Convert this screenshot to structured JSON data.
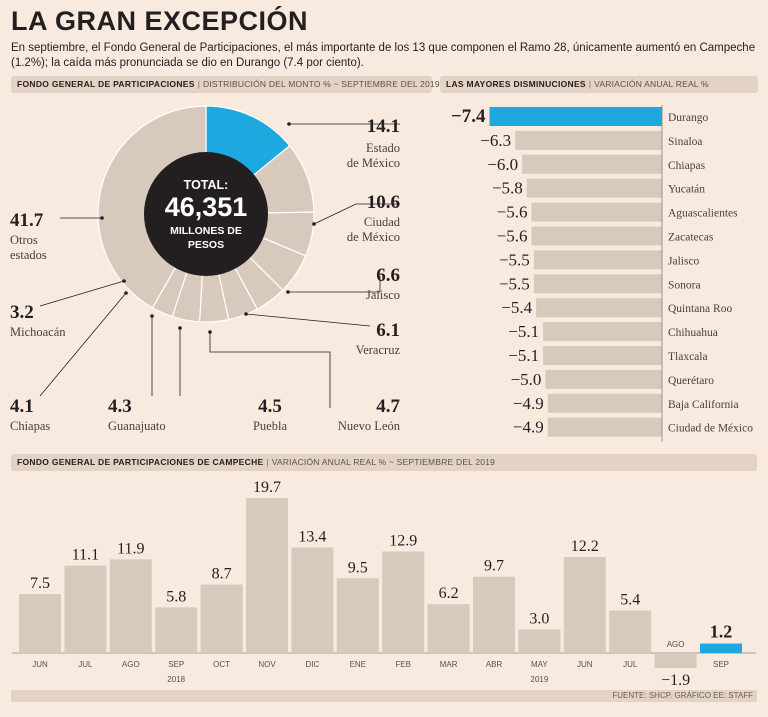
{
  "header": {
    "title": "LA GRAN EXCEPCIÓN",
    "subtitle": "En septiembre, el Fondo General de Participaciones, el más importante de los 13 que componen el Ramo 28, únicamente aumentó en Campeche (1.2%); la caída más pronunciada se dio en Durango (7.4 por ciento)."
  },
  "sections": {
    "pie": {
      "title": "FONDO GENERAL DE PARTICIPACIONES",
      "note": "DISTRIBUCIÓN DEL MONTO % ~ SEPTIEMBRE DEL 2019"
    },
    "decline": {
      "title": "LAS MAYORES DISMINUCIONES",
      "note": "VARIACIÓN ANUAL REAL %"
    },
    "campeche": {
      "title": "FONDO GENERAL DE PARTICIPACIONES DE CAMPECHE",
      "note": "VARIACIÓN ANUAL REAL % ~ SEPTIEMBRE DEL 2019"
    }
  },
  "footer": {
    "source": "FUENTE: SHCP. GRÁFICO EE: STAFF"
  },
  "colors": {
    "gray": "#d7c9bc",
    "blue": "#1ea8e0",
    "dark": "#231f20"
  },
  "chart_data": [
    {
      "type": "pie",
      "title": "FONDO GENERAL DE PARTICIPACIONES",
      "center": {
        "line1": "TOTAL:",
        "line2": "46,351",
        "line3": "MILLONES DE",
        "line4": "PESOS"
      },
      "slices": [
        {
          "label": "Estado de México",
          "label_lines": [
            "Estado",
            "de México"
          ],
          "value": 14.1,
          "value_text": "14.1",
          "highlight": true
        },
        {
          "label": "Ciudad de México",
          "label_lines": [
            "Ciudad",
            "de México"
          ],
          "value": 10.6,
          "value_text": "10.6",
          "highlight": false
        },
        {
          "label": "Jalisco",
          "label_lines": [
            "Jalisco"
          ],
          "value": 6.6,
          "value_text": "6.6",
          "highlight": false
        },
        {
          "label": "Veracruz",
          "label_lines": [
            "Veracruz"
          ],
          "value": 6.1,
          "value_text": "6.1",
          "highlight": false
        },
        {
          "label": "Nuevo León",
          "label_lines": [
            "Nuevo León"
          ],
          "value": 4.7,
          "value_text": "4.7",
          "highlight": false
        },
        {
          "label": "Puebla",
          "label_lines": [
            "Puebla"
          ],
          "value": 4.5,
          "value_text": "4.5",
          "highlight": false
        },
        {
          "label": "Guanajuato",
          "label_lines": [
            "Guanajuato"
          ],
          "value": 4.3,
          "value_text": "4.3",
          "highlight": false
        },
        {
          "label": "Chiapas",
          "label_lines": [
            "Chiapas"
          ],
          "value": 4.1,
          "value_text": "4.1",
          "highlight": false
        },
        {
          "label": "Michoacán",
          "label_lines": [
            "Michoacán"
          ],
          "value": 3.2,
          "value_text": "3.2",
          "highlight": false
        },
        {
          "label": "Otros estados",
          "label_lines": [
            "Otros",
            "estados"
          ],
          "value": 41.7,
          "value_text": "41.7",
          "highlight": false
        }
      ]
    },
    {
      "type": "bar",
      "orientation": "horizontal",
      "title": "LAS MAYORES DISMINUCIONES",
      "categories": [
        "Durango",
        "Sinaloa",
        "Chiapas",
        "Yucatán",
        "Aguascalientes",
        "Zacatecas",
        "Jalisco",
        "Sonora",
        "Quintana Roo",
        "Chihuahua",
        "Tlaxcala",
        "Querétaro",
        "Baja California",
        "Ciudad de México"
      ],
      "values": [
        -7.4,
        -6.3,
        -6.0,
        -5.8,
        -5.6,
        -5.6,
        -5.5,
        -5.5,
        -5.4,
        -5.1,
        -5.1,
        -5.0,
        -4.9,
        -4.9
      ],
      "value_labels": [
        "−7.4",
        "−6.3",
        "−6.0",
        "−5.8",
        "−5.6",
        "−5.6",
        "−5.5",
        "−5.5",
        "−5.4",
        "−5.1",
        "−5.1",
        "−5.0",
        "−4.9",
        "−4.9"
      ],
      "highlight_index": 0
    },
    {
      "type": "bar",
      "title": "FONDO GENERAL DE PARTICIPACIONES DE CAMPECHE",
      "categories": [
        "JUN",
        "JUL",
        "AGO",
        "SEP",
        "OCT",
        "NOV",
        "DIC",
        "ENE",
        "FEB",
        "MAR",
        "ABR",
        "MAY",
        "JUN",
        "JUL",
        "AGO",
        "SEP"
      ],
      "values": [
        7.5,
        11.1,
        11.9,
        5.8,
        8.7,
        19.7,
        13.4,
        9.5,
        12.9,
        6.2,
        9.7,
        3.0,
        12.2,
        5.4,
        -1.9,
        1.2
      ],
      "value_labels": [
        "7.5",
        "11.1",
        "11.9",
        "5.8",
        "8.7",
        "19.7",
        "13.4",
        "9.5",
        "12.9",
        "6.2",
        "9.7",
        "3.0",
        "12.2",
        "5.4",
        "−1.9",
        "1.2"
      ],
      "years": [
        {
          "label": "2018",
          "start": 0,
          "end": 6
        },
        {
          "label": "2019",
          "start": 7,
          "end": 15
        }
      ],
      "highlight_index": 15
    }
  ]
}
